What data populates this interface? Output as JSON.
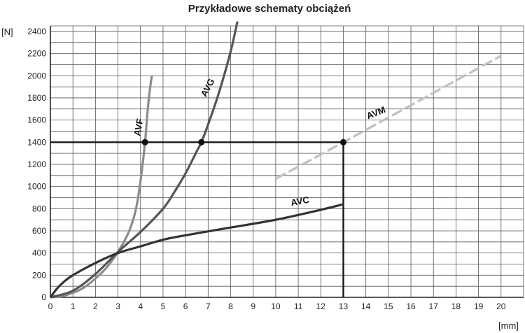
{
  "chart_data": {
    "type": "line",
    "title": "Przykładowe schematy obciążeń",
    "xlabel": "[mm]",
    "ylabel": "[N]",
    "xlim": [
      0,
      21
    ],
    "ylim": [
      0,
      2450
    ],
    "x_ticks": [
      0,
      1,
      2,
      3,
      4,
      5,
      6,
      7,
      8,
      9,
      10,
      11,
      12,
      13,
      14,
      15,
      16,
      17,
      18,
      19,
      20
    ],
    "y_ticks": [
      0,
      200,
      400,
      600,
      800,
      1000,
      1200,
      1400,
      1600,
      1800,
      2000,
      2200,
      2400
    ],
    "grid": true,
    "series": [
      {
        "name": "AVF",
        "color": "#8c8c8c",
        "points": [
          [
            0,
            0
          ],
          [
            0.5,
            10
          ],
          [
            1,
            40
          ],
          [
            1.5,
            90
          ],
          [
            2,
            170
          ],
          [
            2.5,
            270
          ],
          [
            3,
            410
          ],
          [
            3.5,
            600
          ],
          [
            3.8,
            800
          ],
          [
            4.0,
            1050
          ],
          [
            4.2,
            1400
          ],
          [
            4.3,
            1650
          ],
          [
            4.4,
            1850
          ],
          [
            4.5,
            2000
          ]
        ]
      },
      {
        "name": "AVG",
        "color": "#555555",
        "points": [
          [
            0,
            0
          ],
          [
            1,
            60
          ],
          [
            2,
            210
          ],
          [
            3,
            410
          ],
          [
            4,
            590
          ],
          [
            5,
            800
          ],
          [
            5.5,
            950
          ],
          [
            6,
            1120
          ],
          [
            6.5,
            1320
          ],
          [
            6.7,
            1400
          ],
          [
            7,
            1560
          ],
          [
            7.5,
            1860
          ],
          [
            8,
            2220
          ],
          [
            8.3,
            2490
          ]
        ]
      },
      {
        "name": "AVC",
        "color": "#333333",
        "points": [
          [
            0,
            0
          ],
          [
            0.3,
            80
          ],
          [
            0.6,
            140
          ],
          [
            1,
            200
          ],
          [
            2,
            310
          ],
          [
            3,
            400
          ],
          [
            4,
            460
          ],
          [
            5,
            520
          ],
          [
            6,
            560
          ],
          [
            8,
            630
          ],
          [
            10,
            700
          ],
          [
            12,
            790
          ],
          [
            13,
            840
          ]
        ]
      },
      {
        "name": "AVM",
        "color": "#c0c0c0",
        "dashed": true,
        "points": [
          [
            10,
            1070
          ],
          [
            13,
            1400
          ],
          [
            20,
            2180
          ]
        ]
      }
    ],
    "markers": [
      {
        "x": 4.2,
        "y": 1400
      },
      {
        "x": 6.7,
        "y": 1400
      },
      {
        "x": 13,
        "y": 1400
      }
    ],
    "reference_lines": [
      {
        "from": [
          0,
          1400
        ],
        "to": [
          13,
          1400
        ]
      },
      {
        "from": [
          13,
          1400
        ],
        "to": [
          13,
          0
        ]
      }
    ]
  }
}
